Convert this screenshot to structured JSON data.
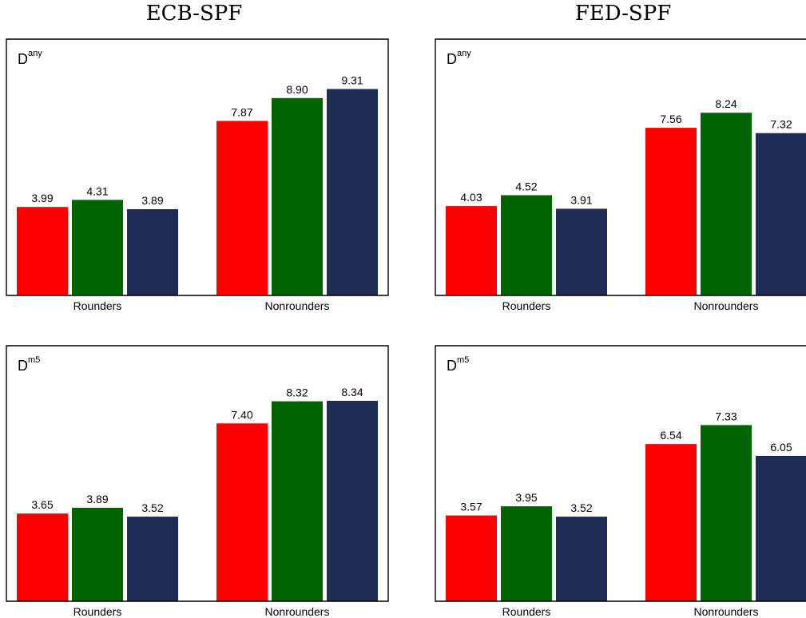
{
  "column_titles": [
    "ECB-SPF",
    "FED-SPF"
  ],
  "colors": [
    "#ff0000",
    "#006400",
    "#1f2d56"
  ],
  "chart_data": [
    {
      "type": "bar",
      "column_title": "ECB-SPF",
      "panel_label": {
        "base": "D",
        "sup": "any"
      },
      "categories": [
        "Rounders",
        "Nonrounders"
      ],
      "series": [
        {
          "values": [
            3.99,
            7.87
          ],
          "labels": [
            "3.99",
            "7.87"
          ]
        },
        {
          "values": [
            4.31,
            8.9
          ],
          "labels": [
            "4.31",
            "8.90"
          ]
        },
        {
          "values": [
            3.89,
            9.31
          ],
          "labels": [
            "3.89",
            "9.31"
          ]
        }
      ],
      "ylim": [
        0,
        11.2
      ],
      "grid": false
    },
    {
      "type": "bar",
      "column_title": "FED-SPF",
      "panel_label": {
        "base": "D",
        "sup": "any"
      },
      "categories": [
        "Rounders",
        "Nonrounders"
      ],
      "series": [
        {
          "values": [
            4.03,
            7.56
          ],
          "labels": [
            "4.03",
            "7.56"
          ]
        },
        {
          "values": [
            4.52,
            8.24
          ],
          "labels": [
            "4.52",
            "8.24"
          ]
        },
        {
          "values": [
            3.91,
            7.32
          ],
          "labels": [
            "3.91",
            "7.32"
          ]
        }
      ],
      "ylim": [
        0,
        11.2
      ],
      "grid": false
    },
    {
      "type": "bar",
      "column_title": "ECB-SPF",
      "panel_label": {
        "base": "D",
        "sup": "m5"
      },
      "categories": [
        "Rounders",
        "Nonrounders"
      ],
      "series": [
        {
          "values": [
            3.65,
            7.4
          ],
          "labels": [
            "3.65",
            "7.40"
          ]
        },
        {
          "values": [
            3.89,
            8.32
          ],
          "labels": [
            "3.89",
            "8.32"
          ]
        },
        {
          "values": [
            3.52,
            8.34
          ],
          "labels": [
            "3.52",
            "8.34"
          ]
        }
      ],
      "ylim": [
        0,
        10.3
      ],
      "grid": false
    },
    {
      "type": "bar",
      "column_title": "FED-SPF",
      "panel_label": {
        "base": "D",
        "sup": "m5"
      },
      "categories": [
        "Rounders",
        "Nonrounders"
      ],
      "series": [
        {
          "values": [
            3.57,
            6.54
          ],
          "labels": [
            "3.57",
            "6.54"
          ]
        },
        {
          "values": [
            3.95,
            7.33
          ],
          "labels": [
            "3.95",
            "7.33"
          ]
        },
        {
          "values": [
            3.52,
            6.05
          ],
          "labels": [
            "3.52",
            "6.05"
          ]
        }
      ],
      "ylim": [
        0,
        10.3
      ],
      "grid": false
    }
  ]
}
